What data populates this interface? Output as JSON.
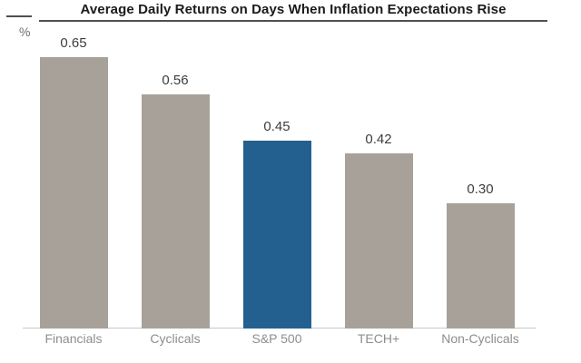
{
  "colors": {
    "background": "#ffffff",
    "bar_default": "#a8a19a",
    "bar_highlight": "#24608f",
    "axis_line": "#c9c9c9",
    "title_rule": "#4f4f4f",
    "title_text": "#1b1b1b",
    "unit_label": "#6e6e6e",
    "value_label": "#3d3d3d",
    "category_label": "#8d8d8d"
  },
  "chart_data": {
    "type": "bar",
    "title": "Average Daily Returns on Days When Inflation Expectations Rise",
    "xlabel": "",
    "ylabel": "%",
    "categories": [
      "Financials",
      "Cyclicals",
      "S&P 500",
      "TECH+",
      "Non-Cyclicals"
    ],
    "values": [
      0.65,
      0.56,
      0.45,
      0.42,
      0.3
    ],
    "value_labels": [
      "0.65",
      "0.56",
      "0.45",
      "0.42",
      "0.30"
    ],
    "highlight_category": "S&P 500",
    "ylim": [
      0,
      0.72
    ],
    "grid": false,
    "legend_position": "none",
    "value_labels_shown": true
  }
}
